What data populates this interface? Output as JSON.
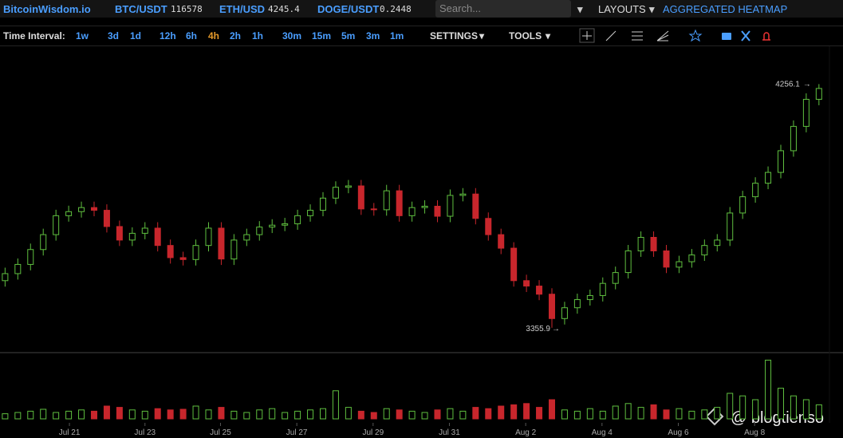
{
  "header": {
    "brand": "BitcoinWisdom.io",
    "tickers": [
      {
        "symbol": "BTC/USDT",
        "price": "116578"
      },
      {
        "symbol": "ETH/USD",
        "price": "4245.4"
      },
      {
        "symbol": "DOGE/USDT",
        "price": "0.2448"
      }
    ],
    "search_placeholder": "Search...",
    "layouts": "LAYOUTS",
    "heatmap": "AGGREGATED HEATMAP"
  },
  "toolbar": {
    "label": "Time Interval:",
    "intervals": [
      "1w",
      "3d",
      "1d",
      "12h",
      "6h",
      "4h",
      "2h",
      "1h",
      "30m",
      "15m",
      "5m",
      "3m",
      "1m"
    ],
    "active_interval_index": 5,
    "settings": "SETTINGS",
    "tools": "TOOLS"
  },
  "watermark": "@ blogtienso",
  "chart_data": {
    "type": "candlestick",
    "up_color": "#5fbf3f",
    "down_color": "#c8262c",
    "ylim": [
      3270,
      4390
    ],
    "vlim": [
      0,
      100
    ],
    "xlim": [
      -0.4,
      64.6
    ],
    "xticks": [
      {
        "value": 5.06,
        "label": "Jul 21"
      },
      {
        "value": 11,
        "label": "Jul 23"
      },
      {
        "value": 16.94,
        "label": "Jul 25"
      },
      {
        "value": 22.94,
        "label": "Jul 27"
      },
      {
        "value": 28.94,
        "label": "Jul 29"
      },
      {
        "value": 34.94,
        "label": "Jul 31"
      },
      {
        "value": 40.94,
        "label": "Aug 2"
      },
      {
        "value": 46.94,
        "label": "Aug 4"
      },
      {
        "value": 52.94,
        "label": "Aug 6"
      },
      {
        "value": 58.94,
        "label": "Aug 8"
      }
    ],
    "open": [
      3530,
      3556,
      3590,
      3645,
      3700,
      3770,
      3785,
      3800,
      3790,
      3730,
      3680,
      3705,
      3724,
      3660,
      3615,
      3608,
      3660,
      3724,
      3610,
      3680,
      3700,
      3728,
      3735,
      3740,
      3770,
      3790,
      3835,
      3875,
      3880,
      3795,
      3792,
      3862,
      3770,
      3800,
      3805,
      3768,
      3845,
      3850,
      3760,
      3700,
      3650,
      3530,
      3510,
      3480,
      3390,
      3430,
      3460,
      3475,
      3520,
      3560,
      3640,
      3690,
      3640,
      3580,
      3600,
      3625,
      3660,
      3680,
      3780,
      3840,
      3890,
      3930,
      4010,
      4100,
      4200
    ],
    "high": [
      3578,
      3612,
      3667,
      3722,
      3792,
      3807,
      3822,
      3822,
      3812,
      3752,
      3727,
      3746,
      3746,
      3682,
      3637,
      3682,
      3746,
      3746,
      3702,
      3722,
      3750,
      3757,
      3762,
      3792,
      3812,
      3857,
      3897,
      3902,
      3902,
      3817,
      3884,
      3884,
      3822,
      3827,
      3827,
      3867,
      3872,
      3872,
      3782,
      3722,
      3672,
      3552,
      3532,
      3502,
      3452,
      3482,
      3497,
      3542,
      3582,
      3662,
      3712,
      3712,
      3662,
      3622,
      3647,
      3682,
      3702,
      3802,
      3862,
      3912,
      3952,
      4032,
      4122,
      4222,
      4256.1
    ],
    "low": [
      3508,
      3534,
      3568,
      3623,
      3678,
      3748,
      3763,
      3768,
      3708,
      3658,
      3658,
      3683,
      3638,
      3593,
      3586,
      3586,
      3638,
      3588,
      3588,
      3658,
      3678,
      3706,
      3713,
      3718,
      3748,
      3768,
      3813,
      3853,
      3773,
      3770,
      3770,
      3748,
      3748,
      3778,
      3746,
      3746,
      3823,
      3738,
      3678,
      3628,
      3508,
      3488,
      3458,
      3355.9,
      3368,
      3408,
      3438,
      3453,
      3498,
      3538,
      3618,
      3618,
      3558,
      3558,
      3578,
      3603,
      3638,
      3658,
      3758,
      3818,
      3868,
      3908,
      3988,
      4078,
      4178
    ],
    "close": [
      3556,
      3590,
      3645,
      3700,
      3770,
      3785,
      3800,
      3790,
      3730,
      3680,
      3705,
      3724,
      3660,
      3615,
      3608,
      3660,
      3724,
      3610,
      3680,
      3700,
      3728,
      3735,
      3740,
      3770,
      3790,
      3835,
      3875,
      3880,
      3795,
      3792,
      3862,
      3770,
      3800,
      3805,
      3768,
      3845,
      3850,
      3760,
      3700,
      3650,
      3530,
      3510,
      3480,
      3390,
      3430,
      3460,
      3475,
      3520,
      3560,
      3640,
      3690,
      3640,
      3580,
      3600,
      3625,
      3660,
      3680,
      3780,
      3840,
      3890,
      3930,
      4010,
      4100,
      4200,
      4240
    ],
    "volume": [
      8,
      10,
      12,
      15,
      10,
      12,
      14,
      12,
      20,
      18,
      14,
      12,
      16,
      14,
      15,
      20,
      14,
      18,
      12,
      10,
      14,
      16,
      10,
      12,
      14,
      16,
      44,
      18,
      12,
      10,
      16,
      14,
      12,
      10,
      14,
      16,
      12,
      18,
      16,
      20,
      22,
      24,
      18,
      30,
      14,
      12,
      16,
      12,
      20,
      24,
      18,
      22,
      14,
      16,
      12,
      14,
      18,
      40,
      36,
      30,
      92,
      48,
      36,
      30,
      22
    ],
    "max_annotation_index": 64,
    "min_annotation_index": 43
  }
}
